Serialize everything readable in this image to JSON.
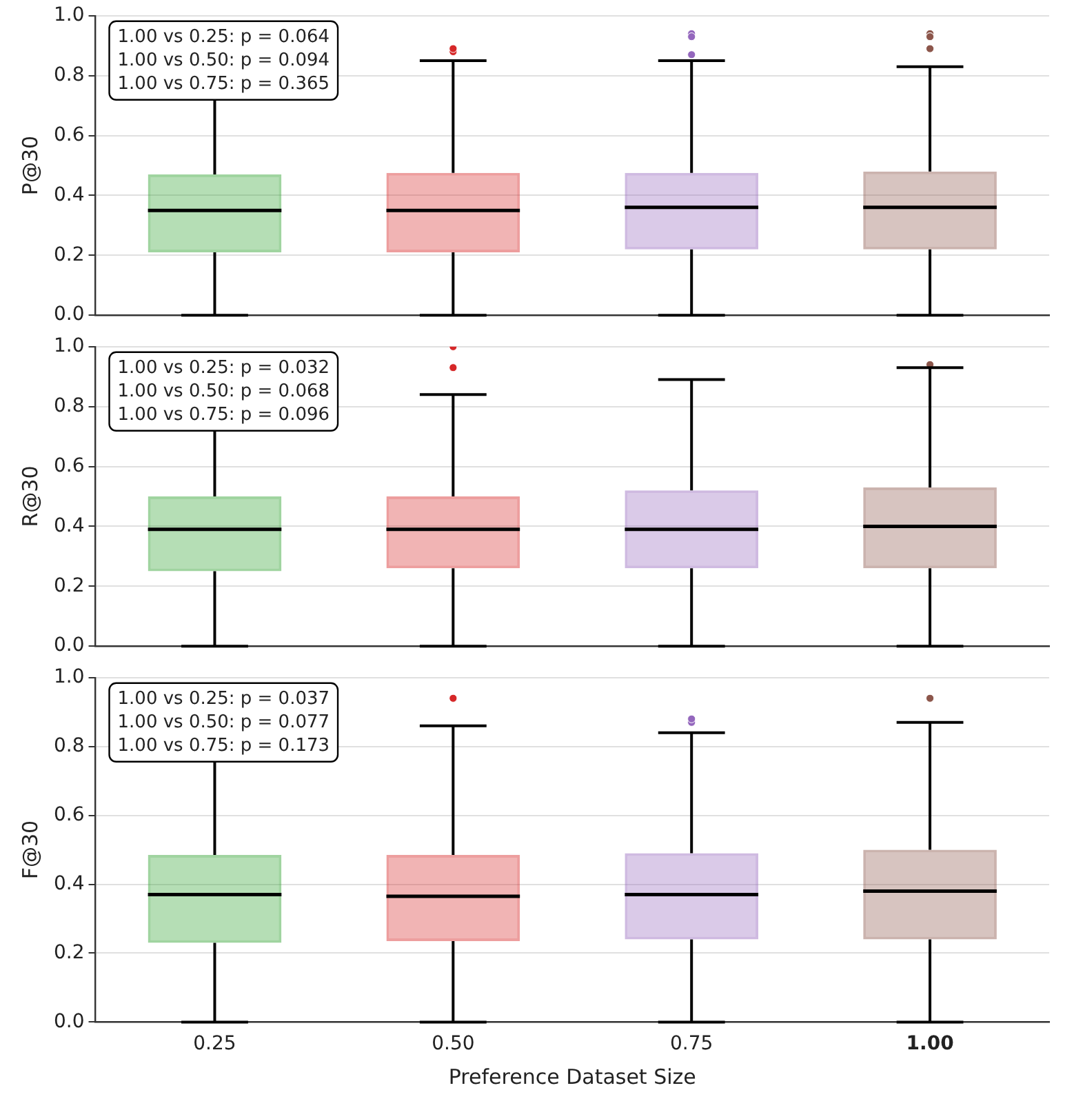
{
  "chart_data": [
    {
      "type": "box",
      "ylabel": "P@30",
      "categories": [
        "0.25",
        "0.50",
        "0.75",
        "1.00"
      ],
      "colors": [
        "#2ca02c",
        "#d62728",
        "#9467bd",
        "#8c564b"
      ],
      "ylim": [
        0,
        1
      ],
      "yticks": [
        {
          "value": 0,
          "label": "0.0"
        },
        {
          "value": 0.2,
          "label": "0.2"
        },
        {
          "value": 0.4,
          "label": "0.4"
        },
        {
          "value": 0.6,
          "label": "0.6"
        },
        {
          "value": 0.8,
          "label": "0.8"
        },
        {
          "value": 1,
          "label": "1.0"
        }
      ],
      "grid": "y",
      "tick_labels": "y",
      "annotations": [
        "1.00 vs 0.25: p = 0.064",
        "1.00 vs 0.50: p = 0.094",
        "1.00 vs 0.75: p = 0.365"
      ],
      "boxes": [
        {
          "low": 0,
          "q1": 0.21,
          "median": 0.35,
          "q3": 0.47,
          "high": 0.85
        },
        {
          "low": 0,
          "q1": 0.21,
          "median": 0.35,
          "q3": 0.475,
          "high": 0.85,
          "outliers": [
            0.88,
            0.89
          ]
        },
        {
          "low": 0,
          "q1": 0.22,
          "median": 0.36,
          "q3": 0.475,
          "high": 0.85,
          "outliers": [
            0.94,
            0.93,
            0.87
          ]
        },
        {
          "low": 0,
          "q1": 0.22,
          "median": 0.36,
          "q3": 0.48,
          "high": 0.83,
          "outliers": [
            0.94,
            0.93,
            0.93,
            0.89
          ]
        }
      ]
    },
    {
      "type": "box",
      "ylabel": "R@30",
      "categories": [
        "0.25",
        "0.50",
        "0.75",
        "1.00"
      ],
      "colors": [
        "#2ca02c",
        "#d62728",
        "#9467bd",
        "#8c564b"
      ],
      "ylim": [
        0,
        1
      ],
      "yticks": [
        {
          "value": 0,
          "label": "0.0"
        },
        {
          "value": 0.2,
          "label": "0.2"
        },
        {
          "value": 0.4,
          "label": "0.4"
        },
        {
          "value": 0.6,
          "label": "0.6"
        },
        {
          "value": 0.8,
          "label": "0.8"
        },
        {
          "value": 1,
          "label": "1.0"
        }
      ],
      "grid": "y",
      "tick_labels": "y",
      "annotations": [
        "1.00 vs 0.25: p = 0.032",
        "1.00 vs 0.50: p = 0.068",
        "1.00 vs 0.75: p = 0.096"
      ],
      "boxes": [
        {
          "low": 0,
          "q1": 0.25,
          "median": 0.39,
          "q3": 0.5,
          "high": 0.88
        },
        {
          "low": 0,
          "q1": 0.26,
          "median": 0.39,
          "q3": 0.5,
          "high": 0.84,
          "outliers": [
            0.93,
            1.0
          ]
        },
        {
          "low": 0,
          "q1": 0.26,
          "median": 0.39,
          "q3": 0.52,
          "high": 0.89
        },
        {
          "low": 0,
          "q1": 0.26,
          "median": 0.4,
          "q3": 0.53,
          "high": 0.93,
          "outliers": [
            0.94
          ]
        }
      ]
    },
    {
      "type": "box",
      "ylabel": "F@30",
      "xlabel": "Preference Dataset Size",
      "categories": [
        "0.25",
        "0.50",
        "0.75",
        "1.00"
      ],
      "colors": [
        "#2ca02c",
        "#d62728",
        "#9467bd",
        "#8c564b"
      ],
      "ylim": [
        0,
        1
      ],
      "yticks": [
        {
          "value": 0,
          "label": "0.0"
        },
        {
          "value": 0.2,
          "label": "0.2"
        },
        {
          "value": 0.4,
          "label": "0.4"
        },
        {
          "value": 0.6,
          "label": "0.6"
        },
        {
          "value": 0.8,
          "label": "0.8"
        },
        {
          "value": 1,
          "label": "1.0"
        }
      ],
      "grid": "y",
      "annotations": [
        "1.00 vs 0.25: p = 0.037",
        "1.00 vs 0.50: p = 0.077",
        "1.00 vs 0.75: p = 0.173"
      ],
      "boxes": [
        {
          "low": 0,
          "q1": 0.23,
          "median": 0.37,
          "q3": 0.485,
          "high": 0.84
        },
        {
          "low": 0,
          "q1": 0.235,
          "median": 0.365,
          "q3": 0.485,
          "high": 0.86,
          "outliers": [
            0.94
          ]
        },
        {
          "low": 0,
          "q1": 0.24,
          "median": 0.37,
          "q3": 0.49,
          "high": 0.84,
          "outliers": [
            0.87,
            0.88
          ]
        },
        {
          "low": 0,
          "q1": 0.24,
          "median": 0.38,
          "q3": 0.5,
          "high": 0.87,
          "outliers": [
            0.94
          ]
        }
      ]
    }
  ]
}
